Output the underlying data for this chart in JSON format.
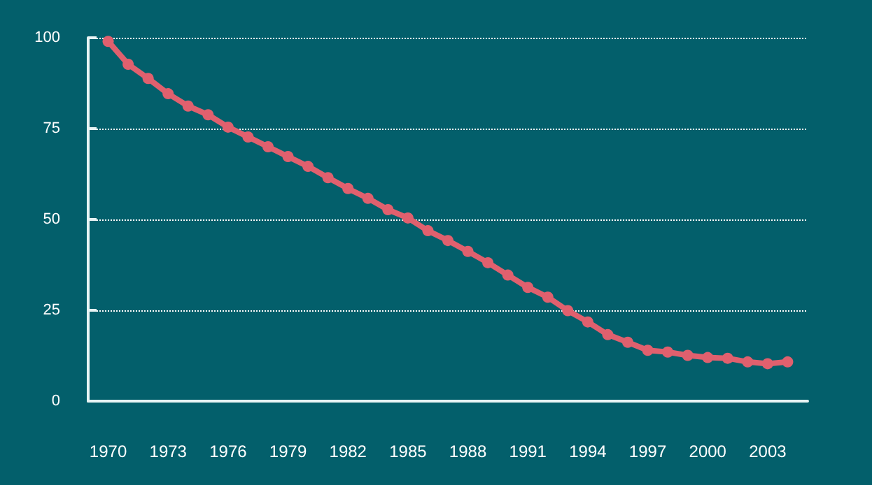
{
  "chart_data": {
    "type": "line",
    "x": [
      1970,
      1971,
      1972,
      1973,
      1974,
      1975,
      1976,
      1977,
      1978,
      1979,
      1980,
      1981,
      1982,
      1983,
      1984,
      1985,
      1986,
      1987,
      1988,
      1989,
      1990,
      1991,
      1992,
      1993,
      1994,
      1995,
      1996,
      1997,
      1998,
      1999,
      2000,
      2001,
      2002,
      2003,
      2004
    ],
    "series": [
      {
        "color": "#e0606e",
        "values": [
          99,
          92.7,
          88.8,
          84.6,
          81.2,
          78.8,
          75.4,
          72.7,
          70,
          67.3,
          64.6,
          61.5,
          58.5,
          55.8,
          52.7,
          50.4,
          46.9,
          44.2,
          41.2,
          38.1,
          34.7,
          31.3,
          28.6,
          24.9,
          21.8,
          18.3,
          16.2,
          14,
          13.5,
          12.6,
          12,
          11.8,
          10.8,
          10.3,
          10.8
        ]
      }
    ],
    "xlim": [
      1969,
      2005
    ],
    "xticks": [
      1970,
      1973,
      1976,
      1979,
      1982,
      1985,
      1988,
      1991,
      1994,
      1997,
      2000,
      2003
    ],
    "ylim": [
      0,
      100
    ],
    "yticks": [
      0,
      25,
      50,
      75,
      100
    ],
    "grid": "y",
    "marker": "circle",
    "line_style": "solid"
  }
}
